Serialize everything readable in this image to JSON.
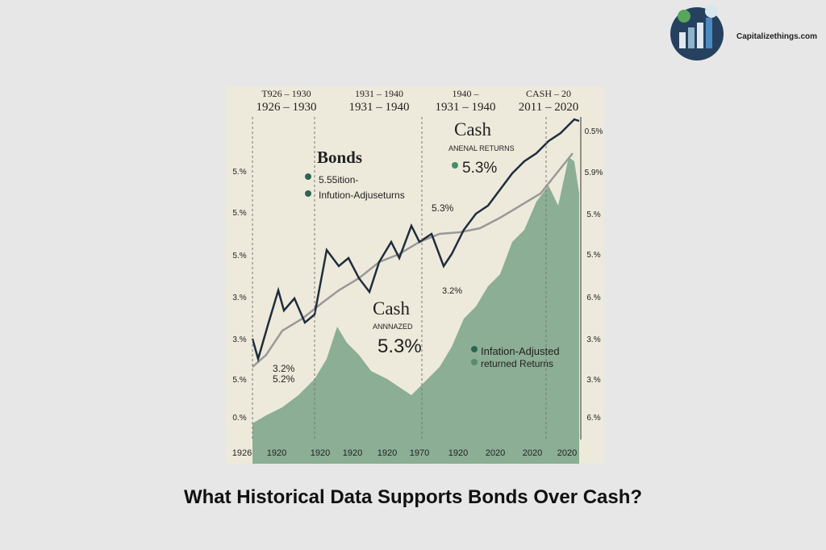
{
  "brand": "Capitalizethings.com",
  "title": "What Historical Data Supports Bonds Over Cash?",
  "figure": {
    "headers": [
      [
        "T926 – 1930",
        "1926 – 1930"
      ],
      [
        "1931 – 1940",
        "1931 – 1940"
      ],
      [
        "1940 –",
        "1931 – 1940"
      ],
      [
        "CASH – 20",
        "2011 – 2020"
      ]
    ],
    "left_labels": [
      "5.%",
      "5.%",
      "5.%",
      "3.%",
      "3.%",
      "5.%",
      "0.%"
    ],
    "right_labels": [
      "0.5%",
      "5.9%",
      "5.%",
      "5.%",
      "6.%",
      "3.%",
      "3.%",
      "6.%"
    ],
    "x_labels": [
      "1926",
      "1920",
      "1920",
      "1920",
      "1920",
      "1970",
      "1920",
      "2020",
      "2020",
      "2020"
    ],
    "annotations": {
      "bonds": "Bonds",
      "bonds_line1": "5.55ition-",
      "bonds_line2": "Infution-Adjuseturns",
      "cash_top": "Cash",
      "cash_top_sub": "ANENAL RETURNS",
      "cash_top_value": "5.3%",
      "mid_value": "5.3%",
      "low_value": "3.2%",
      "cash_mid": "Cash",
      "cash_mid_sub": "ANNNAZED",
      "cash_mid_value": "5.3%",
      "legend_line1": "Infation-Adjusted",
      "legend_line2": "returned Returns",
      "left_a": "3.2%",
      "left_b": "5.2%"
    }
  }
}
